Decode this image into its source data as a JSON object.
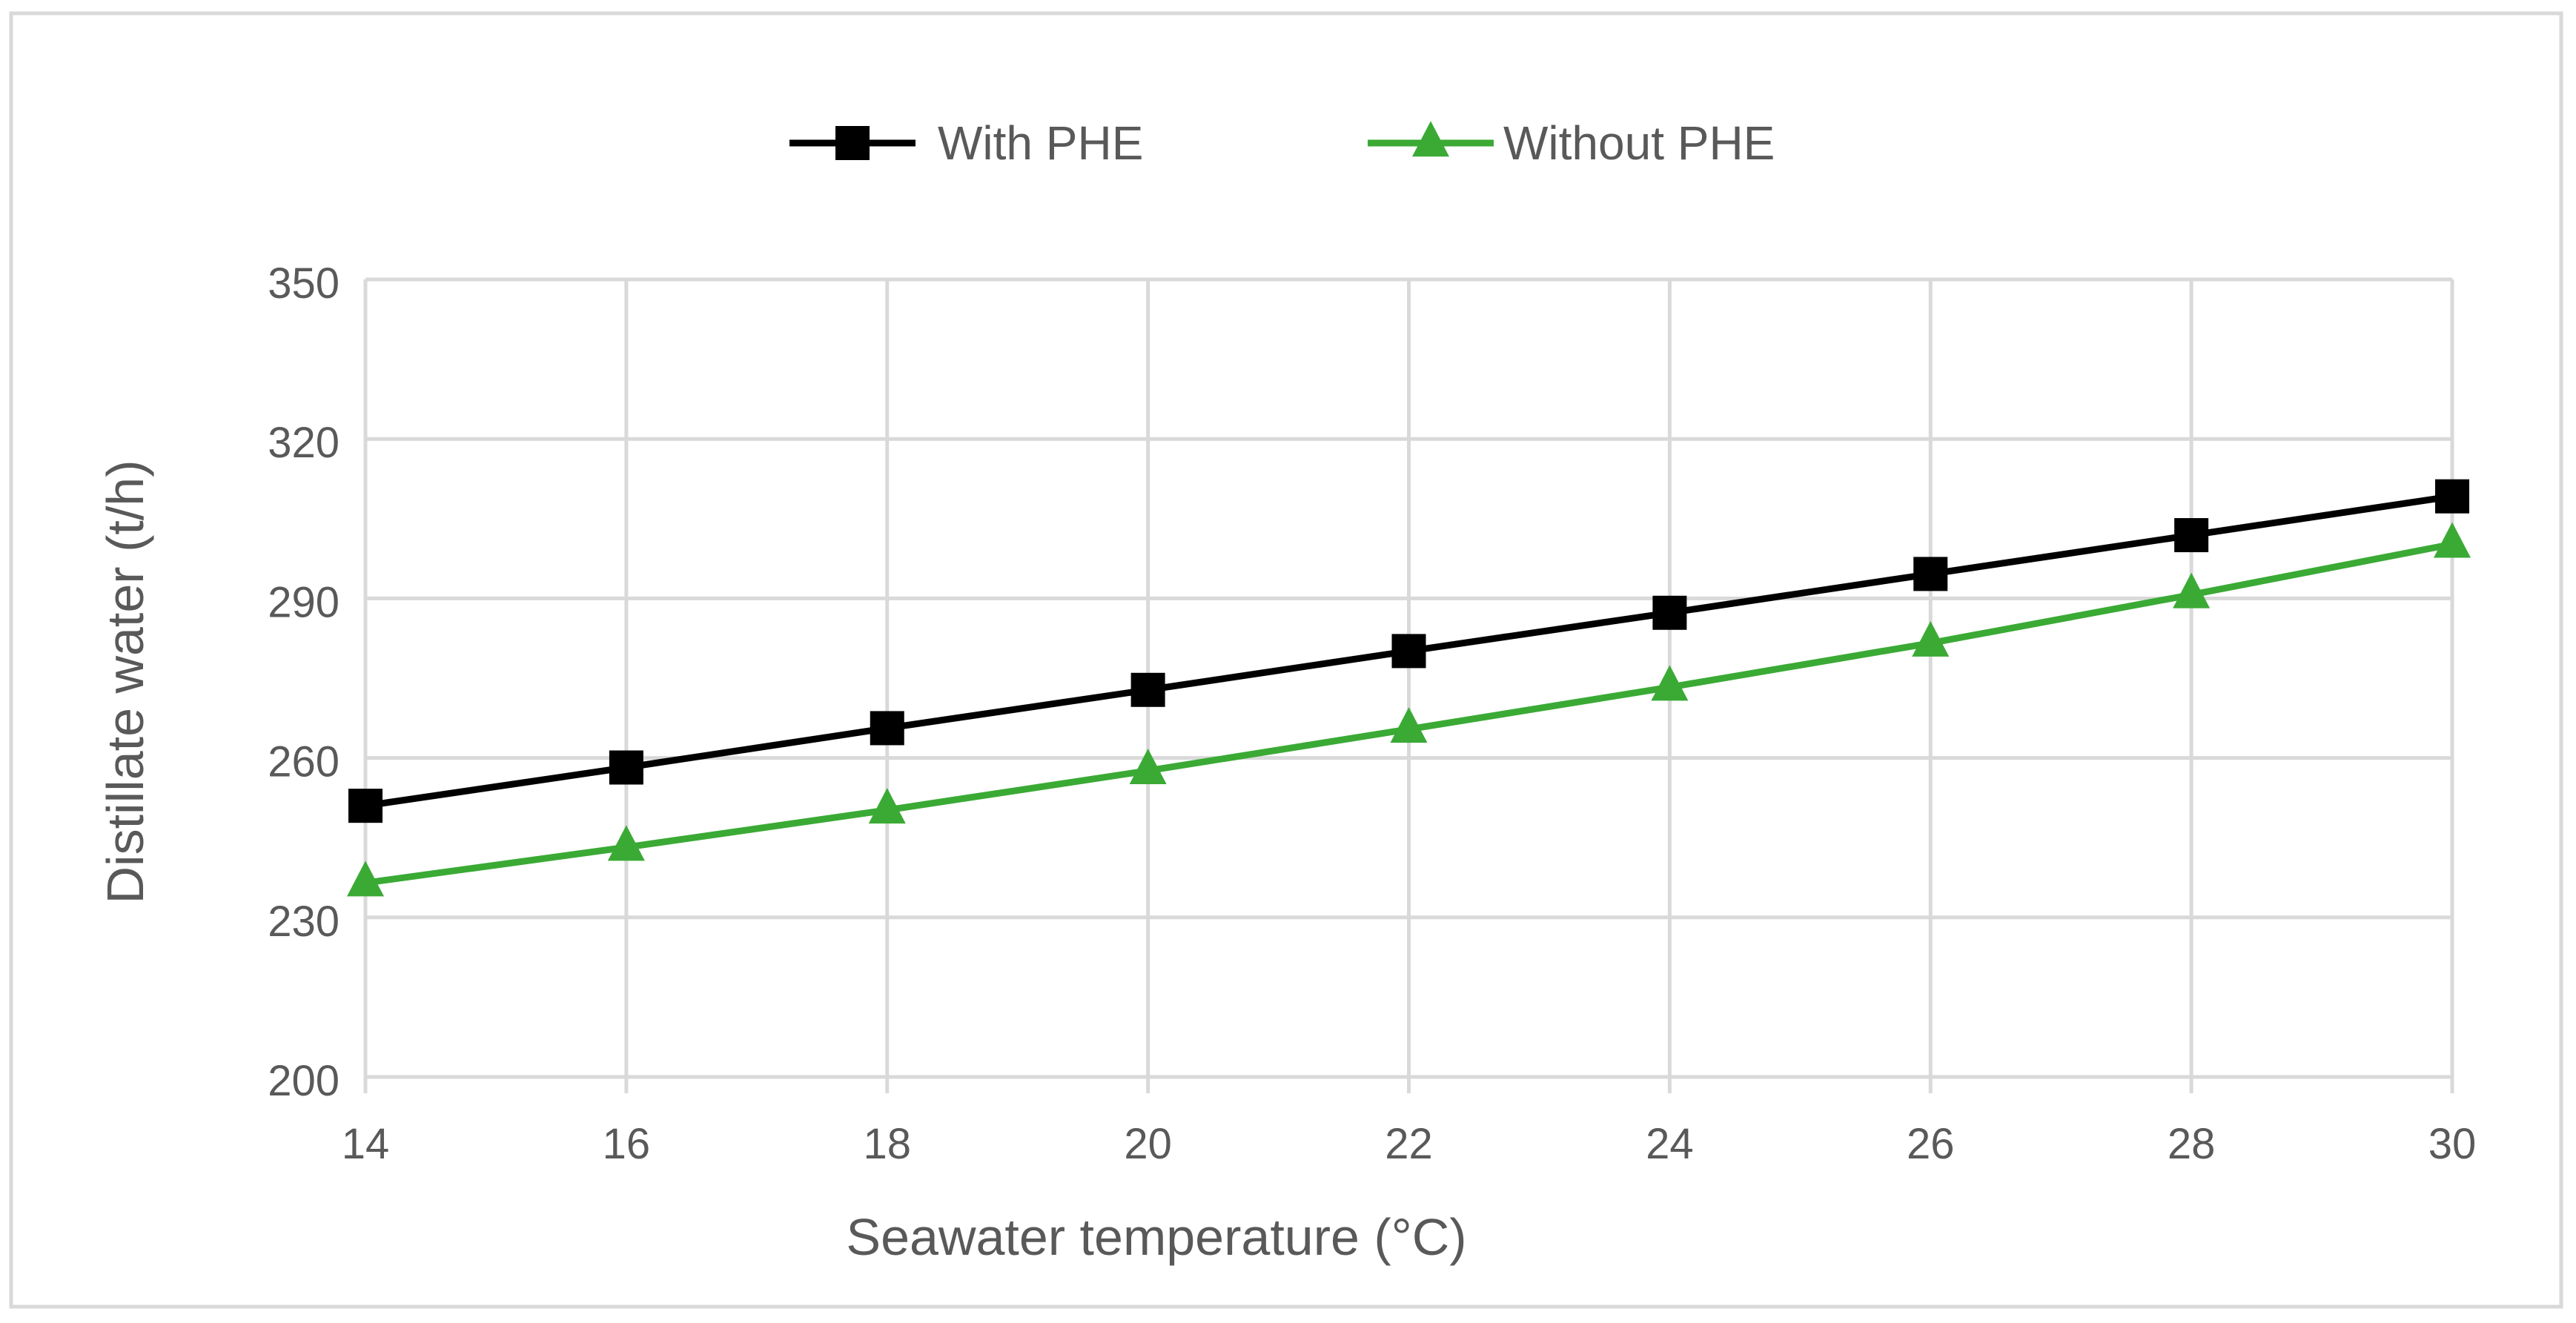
{
  "chart_data": {
    "type": "line",
    "title": "",
    "xlabel": "Seawater temperature (°C)",
    "ylabel": "Distillate water (t/h)",
    "x": [
      14,
      16,
      18,
      20,
      22,
      24,
      26,
      28,
      30
    ],
    "xticks": [
      "14",
      "16",
      "18",
      "20",
      "22",
      "24",
      "26",
      "28",
      "30"
    ],
    "xlim": [
      14,
      30
    ],
    "yticks": [
      200,
      230,
      260,
      290,
      320,
      350
    ],
    "ylim": [
      200,
      350
    ],
    "grid": true,
    "legend_position": "top-center",
    "series": [
      {
        "name": "With PHE",
        "marker": "square",
        "color": "#000000",
        "values": [
          251.0,
          258.2,
          265.6,
          272.8,
          280.1,
          287.3,
          294.6,
          301.9,
          309.2
        ]
      },
      {
        "name": "Without PHE",
        "marker": "triangle",
        "color": "#3aaa35",
        "values": [
          236.5,
          243.2,
          250.2,
          257.6,
          265.4,
          273.3,
          281.6,
          290.7,
          300.2
        ]
      }
    ]
  },
  "colors": {
    "axis_text": "#595959",
    "grid": "#d9d9d9",
    "frame": "#d9d9d9"
  }
}
